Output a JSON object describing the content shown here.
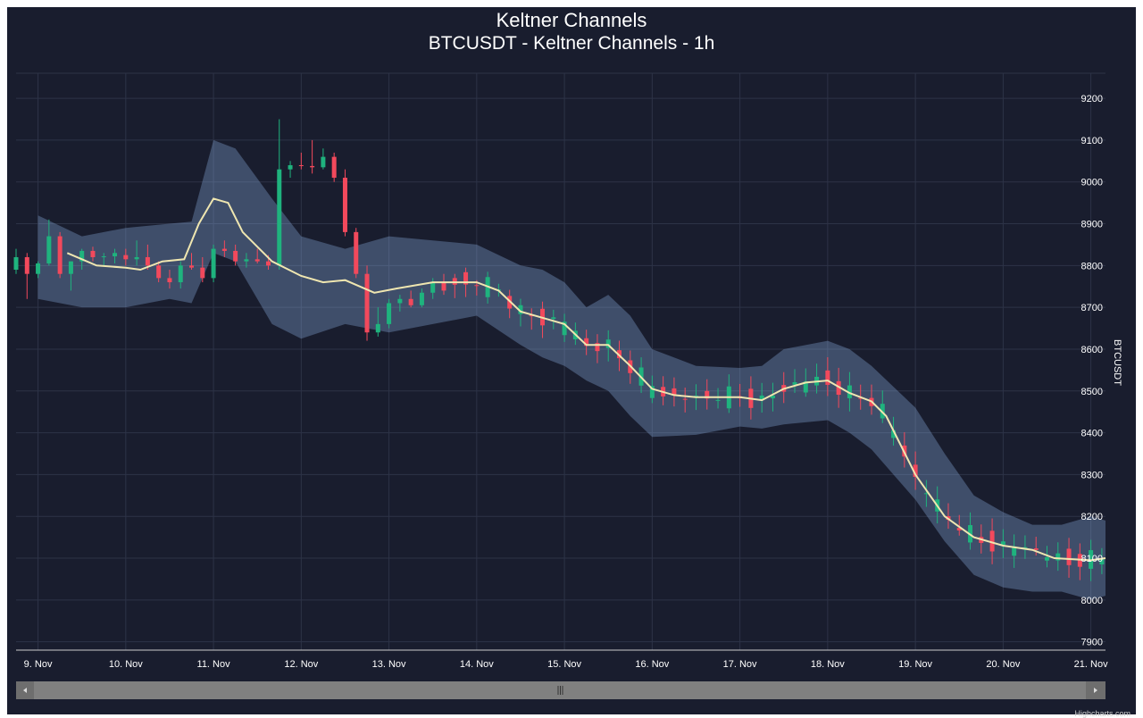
{
  "chart_data": {
    "type": "candlestick",
    "title": "Keltner Channels",
    "subtitle": "BTCUSDT - Keltner Channels - 1h",
    "ylabel": "BTCUSDT",
    "y_axis_position": "right",
    "ylim": [
      7880,
      9260
    ],
    "yticks": [
      7900,
      8000,
      8100,
      8200,
      8300,
      8400,
      8500,
      8600,
      8700,
      8800,
      8900,
      9000,
      9100,
      9200
    ],
    "xlim": [
      "2019-11-08 18:00",
      "2019-11-21 04:00"
    ],
    "xticks": [
      {
        "label": "9. Nov",
        "date": "2019-11-09 00:00"
      },
      {
        "label": "10. Nov",
        "date": "2019-11-10 00:00"
      },
      {
        "label": "11. Nov",
        "date": "2019-11-11 00:00"
      },
      {
        "label": "12. Nov",
        "date": "2019-11-12 00:00"
      },
      {
        "label": "13. Nov",
        "date": "2019-11-13 00:00"
      },
      {
        "label": "14. Nov",
        "date": "2019-11-14 00:00"
      },
      {
        "label": "15. Nov",
        "date": "2019-11-15 00:00"
      },
      {
        "label": "16. Nov",
        "date": "2019-11-16 00:00"
      },
      {
        "label": "17. Nov",
        "date": "2019-11-17 00:00"
      },
      {
        "label": "18. Nov",
        "date": "2019-11-18 00:00"
      },
      {
        "label": "19. Nov",
        "date": "2019-11-19 00:00"
      },
      {
        "label": "20. Nov",
        "date": "2019-11-20 00:00"
      },
      {
        "label": "21. Nov",
        "date": "2019-11-21 00:00"
      }
    ],
    "grid": true,
    "legend": "none",
    "series": [
      {
        "type": "keltner_middle",
        "points": [
          [
            "2019-11-09 08:00",
            8830
          ],
          [
            "2019-11-09 16:00",
            8800
          ],
          [
            "2019-11-10 00:00",
            8795
          ],
          [
            "2019-11-10 04:00",
            8790
          ],
          [
            "2019-11-10 10:00",
            8810
          ],
          [
            "2019-11-10 16:00",
            8815
          ],
          [
            "2019-11-10 20:00",
            8900
          ],
          [
            "2019-11-11 00:00",
            8960
          ],
          [
            "2019-11-11 04:00",
            8950
          ],
          [
            "2019-11-11 08:00",
            8880
          ],
          [
            "2019-11-11 16:00",
            8810
          ],
          [
            "2019-11-12 00:00",
            8775
          ],
          [
            "2019-11-12 06:00",
            8760
          ],
          [
            "2019-11-12 12:00",
            8765
          ],
          [
            "2019-11-12 20:00",
            8735
          ],
          [
            "2019-11-13 02:00",
            8745
          ],
          [
            "2019-11-13 12:00",
            8760
          ],
          [
            "2019-11-14 00:00",
            8760
          ],
          [
            "2019-11-14 06:00",
            8740
          ],
          [
            "2019-11-14 12:00",
            8690
          ],
          [
            "2019-11-14 20:00",
            8670
          ],
          [
            "2019-11-15 00:00",
            8660
          ],
          [
            "2019-11-15 06:00",
            8610
          ],
          [
            "2019-11-15 12:00",
            8610
          ],
          [
            "2019-11-15 18:00",
            8560
          ],
          [
            "2019-11-16 00:00",
            8505
          ],
          [
            "2019-11-16 06:00",
            8490
          ],
          [
            "2019-11-16 12:00",
            8485
          ],
          [
            "2019-11-17 00:00",
            8485
          ],
          [
            "2019-11-17 06:00",
            8478
          ],
          [
            "2019-11-17 12:00",
            8505
          ],
          [
            "2019-11-17 18:00",
            8520
          ],
          [
            "2019-11-18 00:00",
            8525
          ],
          [
            "2019-11-18 06:00",
            8495
          ],
          [
            "2019-11-18 12:00",
            8475
          ],
          [
            "2019-11-18 16:00",
            8440
          ],
          [
            "2019-11-19 00:00",
            8300
          ],
          [
            "2019-11-19 08:00",
            8200
          ],
          [
            "2019-11-19 16:00",
            8150
          ],
          [
            "2019-11-20 00:00",
            8130
          ],
          [
            "2019-11-20 08:00",
            8120
          ],
          [
            "2019-11-20 14:00",
            8100
          ],
          [
            "2019-11-21 00:00",
            8095
          ],
          [
            "2019-11-21 04:00",
            8100
          ]
        ]
      },
      {
        "type": "keltner_upper",
        "points": [
          [
            "2019-11-09 00:00",
            8920
          ],
          [
            "2019-11-09 12:00",
            8870
          ],
          [
            "2019-11-10 00:00",
            8890
          ],
          [
            "2019-11-10 12:00",
            8900
          ],
          [
            "2019-11-10 18:00",
            8905
          ],
          [
            "2019-11-11 00:00",
            9100
          ],
          [
            "2019-11-11 06:00",
            9080
          ],
          [
            "2019-11-11 16:00",
            8960
          ],
          [
            "2019-11-12 00:00",
            8870
          ],
          [
            "2019-11-12 12:00",
            8840
          ],
          [
            "2019-11-13 00:00",
            8870
          ],
          [
            "2019-11-13 12:00",
            8860
          ],
          [
            "2019-11-14 00:00",
            8850
          ],
          [
            "2019-11-14 12:00",
            8800
          ],
          [
            "2019-11-14 18:00",
            8790
          ],
          [
            "2019-11-15 00:00",
            8760
          ],
          [
            "2019-11-15 06:00",
            8700
          ],
          [
            "2019-11-15 12:00",
            8730
          ],
          [
            "2019-11-15 18:00",
            8680
          ],
          [
            "2019-11-16 00:00",
            8600
          ],
          [
            "2019-11-16 12:00",
            8560
          ],
          [
            "2019-11-17 00:00",
            8555
          ],
          [
            "2019-11-17 06:00",
            8560
          ],
          [
            "2019-11-17 12:00",
            8600
          ],
          [
            "2019-11-18 00:00",
            8620
          ],
          [
            "2019-11-18 06:00",
            8600
          ],
          [
            "2019-11-18 12:00",
            8560
          ],
          [
            "2019-11-19 00:00",
            8460
          ],
          [
            "2019-11-19 08:00",
            8350
          ],
          [
            "2019-11-19 16:00",
            8250
          ],
          [
            "2019-11-20 00:00",
            8210
          ],
          [
            "2019-11-20 08:00",
            8180
          ],
          [
            "2019-11-20 16:00",
            8180
          ],
          [
            "2019-11-21 00:00",
            8200
          ],
          [
            "2019-11-21 04:00",
            8190
          ]
        ]
      },
      {
        "type": "keltner_lower",
        "points": [
          [
            "2019-11-09 00:00",
            8720
          ],
          [
            "2019-11-09 12:00",
            8700
          ],
          [
            "2019-11-10 00:00",
            8700
          ],
          [
            "2019-11-10 12:00",
            8720
          ],
          [
            "2019-11-10 18:00",
            8710
          ],
          [
            "2019-11-11 00:00",
            8830
          ],
          [
            "2019-11-11 06:00",
            8810
          ],
          [
            "2019-11-11 16:00",
            8660
          ],
          [
            "2019-11-12 00:00",
            8625
          ],
          [
            "2019-11-12 12:00",
            8660
          ],
          [
            "2019-11-13 00:00",
            8640
          ],
          [
            "2019-11-13 12:00",
            8660
          ],
          [
            "2019-11-14 00:00",
            8680
          ],
          [
            "2019-11-14 12:00",
            8610
          ],
          [
            "2019-11-14 18:00",
            8580
          ],
          [
            "2019-11-15 00:00",
            8560
          ],
          [
            "2019-11-15 06:00",
            8525
          ],
          [
            "2019-11-15 12:00",
            8500
          ],
          [
            "2019-11-15 18:00",
            8440
          ],
          [
            "2019-11-16 00:00",
            8390
          ],
          [
            "2019-11-16 12:00",
            8395
          ],
          [
            "2019-11-17 00:00",
            8415
          ],
          [
            "2019-11-17 06:00",
            8410
          ],
          [
            "2019-11-17 12:00",
            8420
          ],
          [
            "2019-11-18 00:00",
            8430
          ],
          [
            "2019-11-18 06:00",
            8400
          ],
          [
            "2019-11-18 12:00",
            8360
          ],
          [
            "2019-11-19 00:00",
            8240
          ],
          [
            "2019-11-19 08:00",
            8140
          ],
          [
            "2019-11-19 16:00",
            8060
          ],
          [
            "2019-11-20 00:00",
            8030
          ],
          [
            "2019-11-20 08:00",
            8020
          ],
          [
            "2019-11-20 16:00",
            8020
          ],
          [
            "2019-11-21 00:00",
            8000
          ],
          [
            "2019-11-21 04:00",
            8010
          ]
        ]
      }
    ],
    "candles": [
      [
        "2019-11-08 18:00",
        8790,
        8840,
        8780,
        8820,
        "2019-11-08 21:00",
        8820,
        8830,
        8720,
        8780
      ],
      [
        "2019-11-09 00:00",
        8780,
        8810,
        8770,
        8805,
        "2019-11-09 03:00",
        8805,
        8910,
        8800,
        8870
      ],
      [
        "2019-11-09 06:00",
        8870,
        8880,
        8770,
        8780,
        "2019-11-09 09:00",
        8780,
        8810,
        8740,
        8810
      ],
      [
        "2019-11-09 12:00",
        8810,
        8840,
        8790,
        8835,
        "2019-11-09 15:00",
        8835,
        8845,
        8810,
        8820
      ],
      [
        "2019-11-09 18:00",
        8820,
        8830,
        8800,
        8822,
        "2019-11-09 21:00",
        8822,
        8840,
        8805,
        8830
      ],
      [
        "2019-11-10 00:00",
        8825,
        8840,
        8800,
        8815,
        "2019-11-10 03:00",
        8815,
        8860,
        8800,
        8820
      ],
      [
        "2019-11-10 06:00",
        8820,
        8850,
        8790,
        8800,
        "2019-11-10 09:00",
        8800,
        8810,
        8760,
        8770
      ],
      [
        "2019-11-10 12:00",
        8770,
        8790,
        8745,
        8760,
        "2019-11-10 15:00",
        8760,
        8810,
        8745,
        8800
      ],
      [
        "2019-11-10 18:00",
        8800,
        8830,
        8790,
        8795,
        "2019-11-10 21:00",
        8795,
        8820,
        8760,
        8770
      ],
      [
        "2019-11-11 00:00",
        8770,
        8850,
        8760,
        8840,
        "2019-11-11 03:00",
        8840,
        8860,
        8820,
        8835
      ],
      [
        "2019-11-11 06:00",
        8835,
        8850,
        8800,
        8810,
        "2019-11-11 09:00",
        8810,
        8830,
        8795,
        8815
      ],
      [
        "2019-11-11 12:00",
        8815,
        8840,
        8805,
        8810,
        "2019-11-11 15:00",
        8810,
        8825,
        8790,
        8800
      ],
      [
        "2019-11-11 18:00",
        8800,
        9150,
        8790,
        9030,
        "2019-11-11 21:00",
        9030,
        9050,
        9010,
        9040
      ],
      [
        "2019-11-12 00:00",
        9040,
        9070,
        9030,
        9038,
        "2019-11-12 03:00",
        9038,
        9100,
        9020,
        9035
      ],
      [
        "2019-11-12 06:00",
        9035,
        9080,
        9030,
        9060,
        "2019-11-12 09:00",
        9060,
        9070,
        9000,
        9010
      ],
      [
        "2019-11-12 12:00",
        9010,
        9030,
        8870,
        8880,
        "2019-11-12 15:00",
        8880,
        8890,
        8770,
        8780
      ],
      [
        "2019-11-12 18:00",
        8780,
        8800,
        8620,
        8640,
        "2019-11-12 21:00",
        8640,
        8700,
        8630,
        8660
      ],
      [
        "2019-11-13 00:00",
        8660,
        8720,
        8650,
        8710,
        "2019-11-13 03:00",
        8710,
        8730,
        8690,
        8720
      ],
      [
        "2019-11-13 06:00",
        8720,
        8740,
        8700,
        8705,
        "2019-11-13 09:00",
        8705,
        8745,
        8700,
        8735
      ],
      [
        "2019-11-13 12:00",
        8735,
        8770,
        8720,
        8760,
        "2019-11-13 15:00",
        8760,
        8780,
        8730,
        8740
      ]
    ]
  }
}
